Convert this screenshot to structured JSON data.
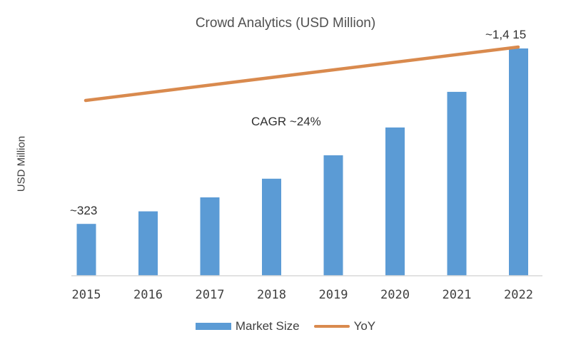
{
  "chart_data": {
    "type": "bar",
    "title": "Crowd Analytics (USD Million)",
    "xlabel": "",
    "ylabel": "USD Million",
    "categories": [
      "2015",
      "2016",
      "2017",
      "2018",
      "2019",
      "2020",
      "2021",
      "2022"
    ],
    "series": [
      {
        "name": "Market Size",
        "type": "bar",
        "color": "#5b9bd5",
        "values": [
          323,
          401,
          488,
          604,
          750,
          923,
          1145,
          1415
        ]
      },
      {
        "name": "YoY",
        "type": "line",
        "color": "#d98a4e",
        "note": "straight increasing trend line from 2015 to 2022, no axis values shown"
      }
    ],
    "annotations": [
      {
        "text": "~323",
        "target": "2015"
      },
      {
        "text": "~1,415",
        "target": "2022"
      },
      {
        "text": "CAGR ~24%",
        "position": "center"
      }
    ],
    "ylim": [
      0,
      1450
    ],
    "grid": false,
    "legend_position": "bottom"
  },
  "labels": {
    "title": "Crowd Analytics (USD Million)",
    "ylabel": "USD Million",
    "first_value": "~323",
    "last_value": "~1,4 15",
    "cagr": "CAGR ~24%",
    "legend": [
      {
        "label": "Market Size",
        "color": "#5b9bd5"
      },
      {
        "label": "YoY",
        "color": "#d98a4e"
      }
    ]
  },
  "colors": {
    "bar": "#5b9bd5",
    "line": "#d98a4e",
    "axis": "#d9d9d9"
  }
}
